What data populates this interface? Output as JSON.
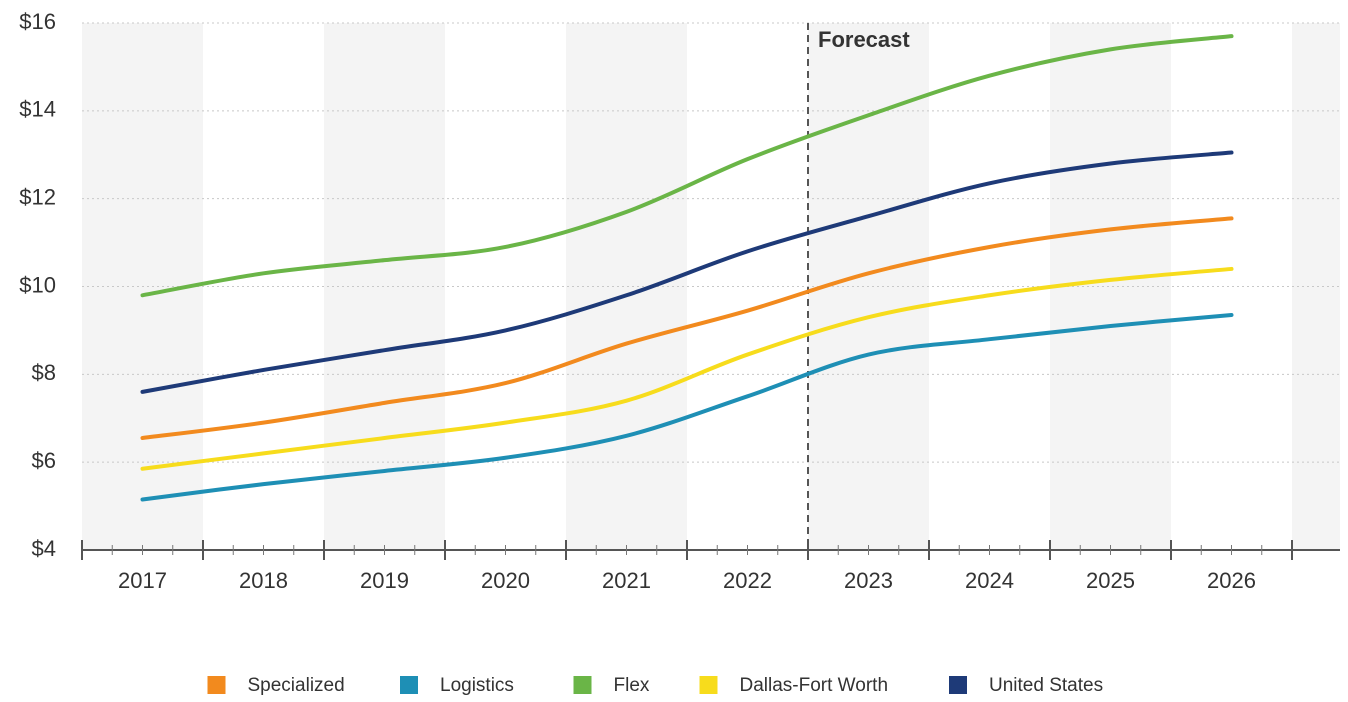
{
  "chart_data": {
    "type": "line",
    "categories": [
      "2017",
      "2018",
      "2019",
      "2020",
      "2021",
      "2022",
      "2023",
      "2024",
      "2025",
      "2026"
    ],
    "series": [
      {
        "name": "Specialized",
        "color": "#f28a1e",
        "values": [
          6.55,
          6.9,
          7.35,
          7.8,
          8.7,
          9.45,
          10.3,
          10.9,
          11.3,
          11.55
        ]
      },
      {
        "name": "Logistics",
        "color": "#1e8fb5",
        "values": [
          5.15,
          5.5,
          5.8,
          6.1,
          6.6,
          7.5,
          8.45,
          8.8,
          9.1,
          9.35
        ]
      },
      {
        "name": "Flex",
        "color": "#6ab547",
        "values": [
          9.8,
          10.3,
          10.6,
          10.9,
          11.7,
          12.9,
          13.9,
          14.8,
          15.4,
          15.7
        ]
      },
      {
        "name": "Dallas-Fort Worth",
        "color": "#f7dc1c",
        "values": [
          5.85,
          6.2,
          6.55,
          6.9,
          7.4,
          8.45,
          9.3,
          9.8,
          10.15,
          10.4
        ]
      },
      {
        "name": "United States",
        "color": "#1e3a78",
        "values": [
          7.6,
          8.1,
          8.55,
          9.0,
          9.8,
          10.8,
          11.6,
          12.35,
          12.8,
          13.05
        ]
      }
    ],
    "ylim": [
      4,
      16
    ],
    "yticks": [
      {
        "value": 4,
        "label": "$4"
      },
      {
        "value": 6,
        "label": "$6"
      },
      {
        "value": 8,
        "label": "$8"
      },
      {
        "value": 10,
        "label": "$10"
      },
      {
        "value": 12,
        "label": "$12"
      },
      {
        "value": 14,
        "label": "$14"
      },
      {
        "value": 16,
        "label": "$16"
      }
    ],
    "grid": true,
    "legend": "bottom",
    "annotations": [
      {
        "text": "Forecast",
        "x": "2023"
      }
    ]
  }
}
